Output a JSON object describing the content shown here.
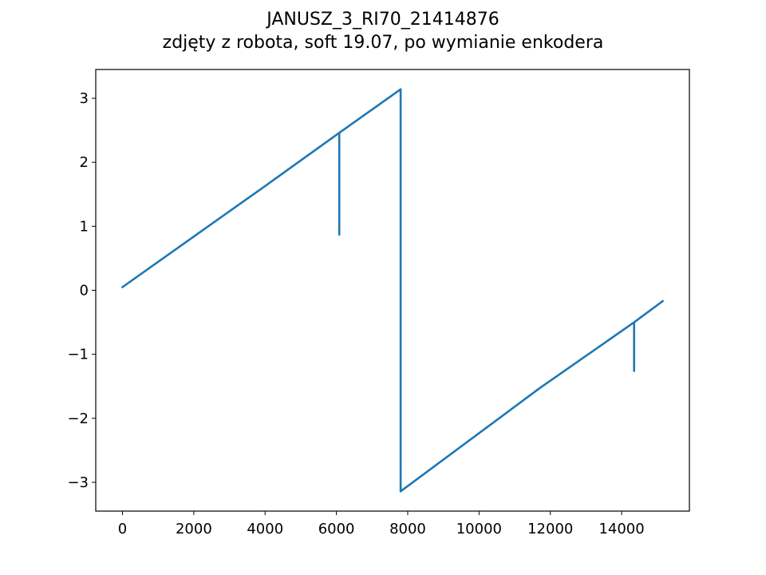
{
  "chart_data": {
    "type": "line",
    "title": "JANUSZ_3_RI70_21414876",
    "subtitle": "zdjęty z robota, soft 19.07, po wymianie enkodera",
    "xlabel": "",
    "ylabel": "",
    "xlim": [
      -750,
      15900
    ],
    "ylim": [
      -3.45,
      3.45
    ],
    "xticks": [
      0,
      2000,
      4000,
      6000,
      8000,
      10000,
      12000,
      14000
    ],
    "xtick_labels": [
      "0",
      "2000",
      "4000",
      "6000",
      "8000",
      "10000",
      "12000",
      "14000"
    ],
    "yticks": [
      3,
      2,
      1,
      0,
      -1,
      -2,
      -3
    ],
    "ytick_labels": [
      "3",
      "2",
      "1",
      "0",
      "−1",
      "−2",
      "−3"
    ],
    "grid": false,
    "series": [
      {
        "color": "#1f77b4",
        "x": [
          0,
          4000,
          6080,
          6080,
          6080,
          7800,
          7800,
          7800,
          11700,
          14350,
          14350,
          14350,
          15150
        ],
        "y": [
          0.05,
          1.63,
          2.46,
          0.87,
          2.46,
          3.14,
          -3.14,
          -3.14,
          -1.53,
          -0.5,
          -1.26,
          -0.5,
          -0.17
        ]
      }
    ]
  }
}
